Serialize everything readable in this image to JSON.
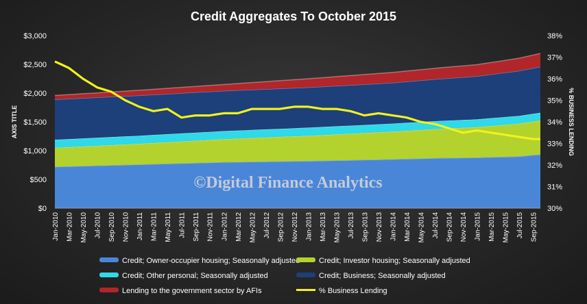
{
  "chart_data": {
    "type": "area",
    "title": "Credit Aggregates To October 2015",
    "watermark": "©Digital Finance Analytics",
    "ylabel_left": "AXIS TITLE",
    "ylabel_right": "% BUSINESS LENDING",
    "y_left_ticks": [
      "$0",
      "$500",
      "$1,000",
      "$1,500",
      "$2,000",
      "$2,500",
      "$3,000"
    ],
    "y_left_range": [
      0,
      3000
    ],
    "y_right_ticks": [
      "30%",
      "31%",
      "32%",
      "33%",
      "34%",
      "35%",
      "36%",
      "37%",
      "38%"
    ],
    "y_right_range": [
      30,
      38
    ],
    "x_tick_labels": [
      "Jan-2010",
      "Mar-2010",
      "May-2010",
      "Jul-2010",
      "Sep-2010",
      "Nov-2010",
      "Jan-2011",
      "Mar-2011",
      "May-2011",
      "Jul-2011",
      "Sep-2011",
      "Nov-2011",
      "Jan-2012",
      "Mar-2012",
      "May-2012",
      "Jul-2012",
      "Sep-2012",
      "Nov-2012",
      "Jan-2013",
      "Mar-2013",
      "May-2013",
      "Jul-2013",
      "Sep-2013",
      "Nov-2013",
      "Jan-2014",
      "Mar-2014",
      "May-2014",
      "Jul-2014",
      "Sep-2014",
      "Nov-2014",
      "Jan-2015",
      "Mar-2015",
      "May-2015",
      "Jul-2015",
      "Sep-2015"
    ],
    "x_range": [
      "Jan-2010",
      "Oct-2015"
    ],
    "stacked_series": [
      {
        "name": "Credit; Owner-occupier housing; Seasonally adjusted",
        "color": "#4a86d8",
        "knots": [
          [
            0,
            720
          ],
          [
            12,
            760
          ],
          [
            24,
            800
          ],
          [
            36,
            820
          ],
          [
            48,
            850
          ],
          [
            54,
            870
          ],
          [
            60,
            880
          ],
          [
            66,
            900
          ],
          [
            69,
            935
          ]
        ]
      },
      {
        "name": "Credit; Investor housing; Seasonally adjusted",
        "color": "#b4d22e",
        "knots": [
          [
            0,
            330
          ],
          [
            12,
            360
          ],
          [
            24,
            400
          ],
          [
            36,
            440
          ],
          [
            48,
            480
          ],
          [
            60,
            530
          ],
          [
            66,
            570
          ],
          [
            69,
            590
          ]
        ]
      },
      {
        "name": "Credit; Other personal; Seasonally adjusted",
        "color": "#2fd9e8",
        "knots": [
          [
            0,
            140
          ],
          [
            12,
            140
          ],
          [
            24,
            140
          ],
          [
            36,
            140
          ],
          [
            48,
            140
          ],
          [
            60,
            135
          ],
          [
            69,
            135
          ]
        ]
      },
      {
        "name": "Credit; Business; Seasonally adjusted",
        "color": "#1d3f7a",
        "knots": [
          [
            0,
            700
          ],
          [
            12,
            700
          ],
          [
            24,
            700
          ],
          [
            36,
            700
          ],
          [
            48,
            710
          ],
          [
            60,
            750
          ],
          [
            69,
            800
          ]
        ]
      },
      {
        "name": "Lending to the government sector by AFIs",
        "color": "#b0262a",
        "knots": [
          [
            0,
            70
          ],
          [
            12,
            90
          ],
          [
            24,
            110
          ],
          [
            36,
            150
          ],
          [
            48,
            180
          ],
          [
            60,
            200
          ],
          [
            69,
            230
          ]
        ]
      }
    ],
    "line_series": {
      "name": "% Business Lending",
      "color": "#f2f21a",
      "axis": "right",
      "knots": [
        [
          0,
          36.8
        ],
        [
          2,
          36.5
        ],
        [
          4,
          36.0
        ],
        [
          6,
          35.6
        ],
        [
          8,
          35.4
        ],
        [
          10,
          35.0
        ],
        [
          12,
          34.7
        ],
        [
          14,
          34.5
        ],
        [
          16,
          34.6
        ],
        [
          18,
          34.2
        ],
        [
          20,
          34.3
        ],
        [
          22,
          34.3
        ],
        [
          24,
          34.4
        ],
        [
          26,
          34.4
        ],
        [
          28,
          34.6
        ],
        [
          30,
          34.6
        ],
        [
          32,
          34.6
        ],
        [
          34,
          34.7
        ],
        [
          36,
          34.7
        ],
        [
          38,
          34.6
        ],
        [
          40,
          34.6
        ],
        [
          42,
          34.5
        ],
        [
          44,
          34.3
        ],
        [
          46,
          34.4
        ],
        [
          48,
          34.3
        ],
        [
          50,
          34.2
        ],
        [
          52,
          34.0
        ],
        [
          54,
          33.9
        ],
        [
          56,
          33.7
        ],
        [
          58,
          33.5
        ],
        [
          60,
          33.6
        ],
        [
          62,
          33.5
        ],
        [
          64,
          33.4
        ],
        [
          66,
          33.3
        ],
        [
          68,
          33.2
        ],
        [
          69,
          33.2
        ]
      ]
    },
    "legend_placement": "bottom",
    "grid": false
  }
}
